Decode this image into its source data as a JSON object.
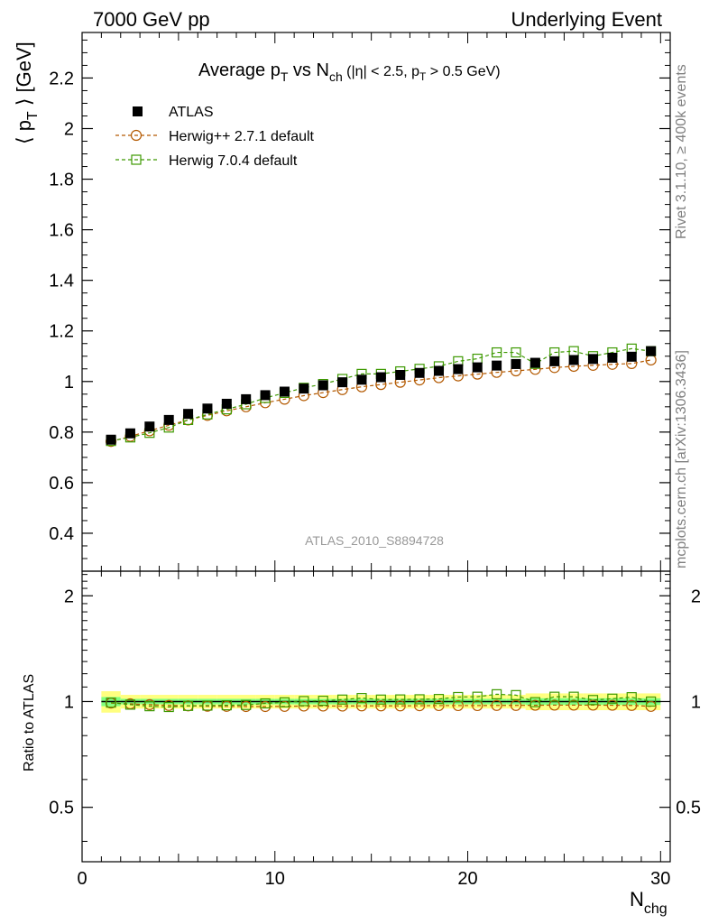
{
  "header": {
    "left": "7000 GeV pp",
    "right": "Underlying Event"
  },
  "side_labels": {
    "rivet": "Rivet 3.1.10, ≥ 400k events",
    "mcplots": "mcplots.cern.ch [arXiv:1306.3436]"
  },
  "watermark": "ATLAS_2010_S8894728",
  "colors": {
    "atlas": "#000000",
    "herwigpp": "#b35900",
    "herwig7": "#3d9900",
    "band_outer": "#ffff80",
    "band_inner": "#80ff80"
  },
  "chart_data": [
    {
      "type": "scatter",
      "title_parts": {
        "t1": "Average p",
        "t1_sub": "T",
        "t2": " vs N",
        "t2_sub": "ch",
        "t3": " (|η| < 2.5, p",
        "t3_sub": "T",
        "t4": " > 0.5 GeV)"
      },
      "ylabel": "⟨ p_T ⟩ [GeV]",
      "ylabel_parts": {
        "a": "⟨ p",
        "sub": "T",
        "b": " ⟩ [GeV]"
      },
      "xlim": [
        0,
        30.5
      ],
      "ylim": [
        0.25,
        2.38
      ],
      "yticks": [
        0.4,
        0.6,
        0.8,
        1,
        1.2,
        1.4,
        1.6,
        1.8,
        2,
        2.2
      ],
      "ytick_labels": [
        "0.4",
        "0.6",
        "0.8",
        "1",
        "1.2",
        "1.4",
        "1.6",
        "1.8",
        "2",
        "2.2"
      ],
      "legend_position": "top-left",
      "series": [
        {
          "name": "ATLAS",
          "marker": "filled-square",
          "x": [
            1.5,
            2.5,
            3.5,
            4.5,
            5.5,
            6.5,
            7.5,
            8.5,
            9.5,
            10.5,
            11.5,
            12.5,
            13.5,
            14.5,
            15.5,
            16.5,
            17.5,
            18.5,
            19.5,
            20.5,
            21.5,
            22.5,
            23.5,
            24.5,
            25.5,
            26.5,
            27.5,
            28.5,
            29.5
          ],
          "y": [
            0.77,
            0.795,
            0.822,
            0.848,
            0.872,
            0.893,
            0.912,
            0.93,
            0.946,
            0.96,
            0.972,
            0.985,
            0.997,
            1.007,
            1.017,
            1.026,
            1.034,
            1.042,
            1.049,
            1.056,
            1.063,
            1.069,
            1.074,
            1.08,
            1.085,
            1.089,
            1.094,
            1.098,
            1.12
          ]
        },
        {
          "name": "Herwig++ 2.7.1 default",
          "marker": "open-circle",
          "x": [
            1.5,
            2.5,
            3.5,
            4.5,
            5.5,
            6.5,
            7.5,
            8.5,
            9.5,
            10.5,
            11.5,
            12.5,
            13.5,
            14.5,
            15.5,
            16.5,
            17.5,
            18.5,
            19.5,
            20.5,
            21.5,
            22.5,
            23.5,
            24.5,
            25.5,
            26.5,
            27.5,
            28.5,
            29.5
          ],
          "y": [
            0.763,
            0.783,
            0.805,
            0.827,
            0.848,
            0.866,
            0.884,
            0.9,
            0.916,
            0.93,
            0.944,
            0.956,
            0.968,
            0.979,
            0.988,
            0.997,
            1.006,
            1.015,
            1.022,
            1.029,
            1.036,
            1.042,
            1.048,
            1.055,
            1.06,
            1.064,
            1.068,
            1.071,
            1.085
          ]
        },
        {
          "name": "Herwig 7.0.4 default",
          "marker": "open-square",
          "x": [
            1.5,
            2.5,
            3.5,
            4.5,
            5.5,
            6.5,
            7.5,
            8.5,
            9.5,
            10.5,
            11.5,
            12.5,
            13.5,
            14.5,
            15.5,
            16.5,
            17.5,
            18.5,
            19.5,
            20.5,
            21.5,
            22.5,
            23.5,
            24.5,
            25.5,
            26.5,
            27.5,
            28.5,
            29.5
          ],
          "y": [
            0.765,
            0.779,
            0.797,
            0.818,
            0.848,
            0.87,
            0.89,
            0.91,
            0.935,
            0.955,
            0.975,
            0.99,
            1.01,
            1.03,
            1.03,
            1.04,
            1.05,
            1.06,
            1.08,
            1.09,
            1.115,
            1.115,
            1.07,
            1.115,
            1.12,
            1.1,
            1.115,
            1.13,
            1.12
          ]
        }
      ]
    },
    {
      "type": "scatter",
      "ylabel": "Ratio to ATLAS",
      "xlabel_parts": {
        "a": "N",
        "sub": "chg"
      },
      "xlim": [
        0,
        30.5
      ],
      "ylim": [
        0.35,
        2.35
      ],
      "log_y": true,
      "xticks": [
        0,
        10,
        20,
        30
      ],
      "xtick_labels": [
        "0",
        "10",
        "20",
        "30"
      ],
      "yticks": [
        0.5,
        1,
        2
      ],
      "ytick_labels": [
        "0.5",
        "1",
        "2"
      ],
      "band": {
        "x": [
          1.5,
          2.5,
          3.5,
          4.5,
          5.5,
          6.5,
          7.5,
          8.5,
          9.5,
          10.5,
          11.5,
          12.5,
          13.5,
          14.5,
          15.5,
          16.5,
          17.5,
          18.5,
          19.5,
          20.5,
          21.5,
          22.5,
          23.5,
          24.5,
          25.5,
          26.5,
          27.5,
          28.5,
          29.5
        ],
        "outer": [
          0.07,
          0.045,
          0.045,
          0.045,
          0.045,
          0.045,
          0.045,
          0.045,
          0.045,
          0.045,
          0.045,
          0.045,
          0.045,
          0.045,
          0.045,
          0.045,
          0.045,
          0.045,
          0.045,
          0.045,
          0.045,
          0.045,
          0.055,
          0.055,
          0.055,
          0.055,
          0.055,
          0.055,
          0.055
        ],
        "inner": [
          0.03,
          0.018,
          0.018,
          0.018,
          0.018,
          0.018,
          0.018,
          0.018,
          0.018,
          0.018,
          0.018,
          0.018,
          0.018,
          0.018,
          0.018,
          0.018,
          0.018,
          0.018,
          0.018,
          0.018,
          0.018,
          0.018,
          0.022,
          0.022,
          0.022,
          0.022,
          0.022,
          0.022,
          0.022
        ]
      },
      "series": [
        {
          "name": "Herwig++ 2.7.1 default",
          "marker": "open-circle",
          "x": [
            1.5,
            2.5,
            3.5,
            4.5,
            5.5,
            6.5,
            7.5,
            8.5,
            9.5,
            10.5,
            11.5,
            12.5,
            13.5,
            14.5,
            15.5,
            16.5,
            17.5,
            18.5,
            19.5,
            20.5,
            21.5,
            22.5,
            23.5,
            24.5,
            25.5,
            26.5,
            27.5,
            28.5,
            29.5
          ],
          "y": [
            0.99,
            0.985,
            0.98,
            0.975,
            0.972,
            0.97,
            0.969,
            0.968,
            0.968,
            0.969,
            0.971,
            0.971,
            0.971,
            0.972,
            0.972,
            0.972,
            0.973,
            0.974,
            0.974,
            0.974,
            0.975,
            0.975,
            0.976,
            0.977,
            0.977,
            0.977,
            0.976,
            0.975,
            0.969
          ]
        },
        {
          "name": "Herwig 7.0.4 default",
          "marker": "open-square",
          "x": [
            1.5,
            2.5,
            3.5,
            4.5,
            5.5,
            6.5,
            7.5,
            8.5,
            9.5,
            10.5,
            11.5,
            12.5,
            13.5,
            14.5,
            15.5,
            16.5,
            17.5,
            18.5,
            19.5,
            20.5,
            21.5,
            22.5,
            23.5,
            24.5,
            25.5,
            26.5,
            27.5,
            28.5,
            29.5
          ],
          "y": [
            0.993,
            0.98,
            0.97,
            0.965,
            0.972,
            0.974,
            0.976,
            0.978,
            0.988,
            0.995,
            1.003,
            1.005,
            1.013,
            1.023,
            1.013,
            1.014,
            1.015,
            1.017,
            1.03,
            1.032,
            1.049,
            1.043,
            0.996,
            1.032,
            1.032,
            1.01,
            1.019,
            1.029,
            1.0
          ]
        }
      ]
    }
  ]
}
